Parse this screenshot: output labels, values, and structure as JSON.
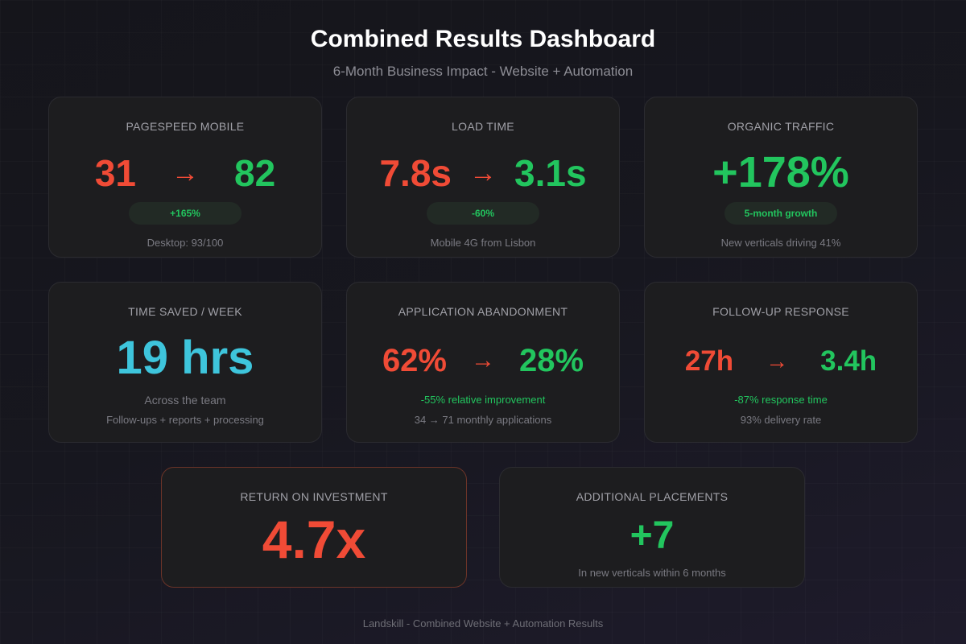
{
  "header": {
    "title": "Combined Results Dashboard",
    "subtitle": "6-Month Business Impact - Website + Automation"
  },
  "cards": {
    "pagespeed": {
      "label": "PAGESPEED MOBILE",
      "before": "31",
      "arrow": "→",
      "after": "82",
      "badge": "+165%",
      "note": "Desktop: 93/100"
    },
    "loadtime": {
      "label": "LOAD TIME",
      "before": "7.8s",
      "arrow": "→",
      "after": "3.1s",
      "badge": "-60%",
      "note": "Mobile 4G from Lisbon"
    },
    "traffic": {
      "label": "ORGANIC TRAFFIC",
      "value": "+178%",
      "badge": "5-month growth",
      "note": "New verticals driving 41%"
    },
    "timesaved": {
      "label": "TIME SAVED / WEEK",
      "value": "19 hrs",
      "note1": "Across the team",
      "note2": "Follow-ups + reports + processing"
    },
    "abandonment": {
      "label": "APPLICATION ABANDONMENT",
      "before": "62%",
      "arrow": "→",
      "after": "28%",
      "highlight": "-55% relative improvement",
      "note": "34 → 71 monthly applications"
    },
    "followup": {
      "label": "FOLLOW-UP RESPONSE",
      "before": "27h",
      "arrow": "→",
      "after": "3.4h",
      "highlight": "-87% response time",
      "note": "93% delivery rate"
    },
    "roi": {
      "label": "RETURN ON INVESTMENT",
      "value": "4.7x"
    },
    "placements": {
      "label": "ADDITIONAL PLACEMENTS",
      "value": "+7",
      "note": "In new verticals within 6 months"
    }
  },
  "footer": "Landskill - Combined Website + Automation Results",
  "colors": {
    "before": "#f04b36",
    "after": "#22c55e",
    "highlight": "#3ec5dc"
  }
}
